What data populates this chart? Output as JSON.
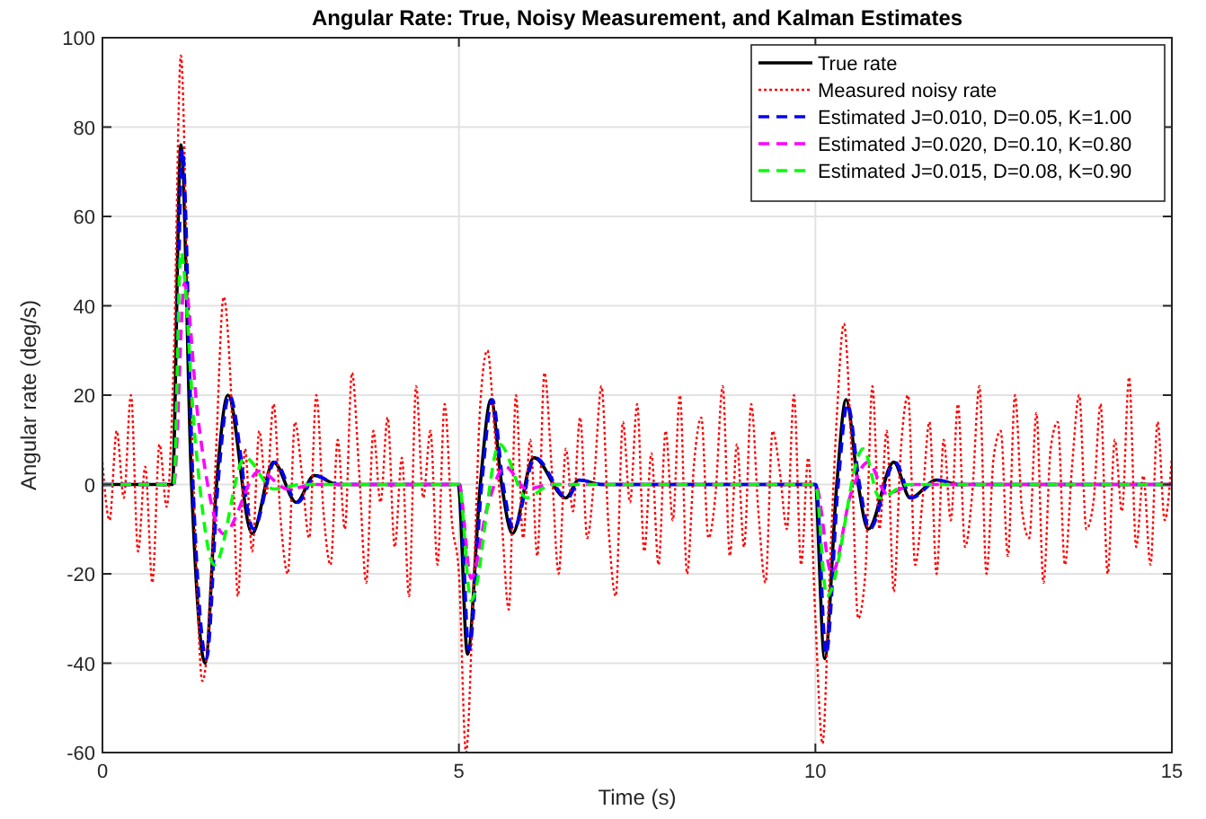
{
  "chart_data": {
    "type": "line",
    "title": "Angular Rate: True, Noisy Measurement, and Kalman Estimates",
    "xlabel": "Time (s)",
    "ylabel": "Angular rate (deg/s)",
    "xlim": [
      0,
      15
    ],
    "xticks": [
      0,
      5,
      10,
      15
    ],
    "ylim": [
      -60,
      100
    ],
    "yticks": [
      -60,
      -40,
      -20,
      0,
      20,
      40,
      60,
      80,
      100
    ],
    "grid": true,
    "legend": "top right",
    "series": [
      {
        "name": "True rate",
        "color": "#000000",
        "line_style": "solid",
        "x": [
          0,
          0.98,
          1.1,
          1.25,
          1.44,
          1.6,
          1.76,
          2.1,
          2.4,
          2.72,
          2.97,
          3.3,
          4.99,
          5.12,
          5.3,
          5.45,
          5.6,
          5.75,
          6.05,
          6.5,
          6.68,
          7.0,
          9.99,
          10.13,
          10.3,
          10.43,
          10.6,
          10.74,
          11.1,
          11.33,
          11.7,
          12.0,
          15
        ],
        "values": [
          0,
          0,
          76,
          0,
          -40,
          0,
          20,
          -11,
          5,
          -4,
          2,
          0,
          0,
          -38,
          0,
          19,
          0,
          -11,
          6,
          -3,
          1,
          0,
          0,
          -39,
          0,
          19,
          0,
          -10,
          5,
          -3,
          1,
          0,
          0
        ]
      },
      {
        "name": "Measured noisy rate",
        "color": "#ff0000",
        "line_style": "dotted",
        "x": [
          0,
          0.1,
          0.2,
          0.3,
          0.4,
          0.5,
          0.6,
          0.7,
          0.8,
          0.9,
          1,
          1.1,
          1.2,
          1.3,
          1.4,
          1.5,
          1.6,
          1.7,
          1.8,
          1.9,
          2,
          2.1,
          2.2,
          2.3,
          2.4,
          2.5,
          2.6,
          2.7,
          2.8,
          2.9,
          3,
          3.1,
          3.2,
          3.3,
          3.4,
          3.5,
          3.6,
          3.7,
          3.8,
          3.9,
          4,
          4.1,
          4.2,
          4.3,
          4.4,
          4.5,
          4.6,
          4.7,
          4.8,
          4.9,
          5,
          5.1,
          5.2,
          5.3,
          5.4,
          5.5,
          5.6,
          5.7,
          5.8,
          5.9,
          6,
          6.1,
          6.2,
          6.3,
          6.4,
          6.5,
          6.6,
          6.7,
          6.8,
          6.9,
          7,
          7.1,
          7.2,
          7.3,
          7.4,
          7.5,
          7.6,
          7.7,
          7.8,
          7.9,
          8,
          8.1,
          8.2,
          8.3,
          8.4,
          8.5,
          8.6,
          8.7,
          8.8,
          8.9,
          9,
          9.1,
          9.2,
          9.3,
          9.4,
          9.5,
          9.6,
          9.7,
          9.8,
          9.9,
          10,
          10.1,
          10.2,
          10.3,
          10.4,
          10.5,
          10.6,
          10.7,
          10.8,
          10.9,
          11,
          11.1,
          11.2,
          11.3,
          11.4,
          11.5,
          11.6,
          11.7,
          11.8,
          11.9,
          12,
          12.1,
          12.2,
          12.3,
          12.4,
          12.5,
          12.6,
          12.7,
          12.8,
          12.9,
          13,
          13.1,
          13.2,
          13.3,
          13.4,
          13.5,
          13.6,
          13.7,
          13.8,
          13.9,
          14,
          14.1,
          14.2,
          14.3,
          14.4,
          14.5,
          14.6,
          14.7,
          14.8,
          14.9,
          15
        ],
        "values": [
          5,
          -8,
          12,
          -3,
          20,
          -15,
          4,
          -22,
          9,
          -5,
          28,
          96,
          40,
          -10,
          -44,
          -30,
          10,
          42,
          22,
          -25,
          8,
          -15,
          12,
          -2,
          18,
          -8,
          -20,
          14,
          2,
          -12,
          20,
          -6,
          -18,
          10,
          -10,
          25,
          3,
          -22,
          12,
          -4,
          15,
          -14,
          6,
          -25,
          22,
          -3,
          12,
          -18,
          18,
          -8,
          -20,
          -60,
          -25,
          18,
          30,
          12,
          -8,
          -28,
          20,
          -12,
          10,
          -16,
          25,
          4,
          -20,
          8,
          -6,
          15,
          -12,
          2,
          22,
          -10,
          -25,
          14,
          -4,
          18,
          -15,
          7,
          -18,
          12,
          -8,
          20,
          -20,
          5,
          15,
          -12,
          -2,
          22,
          -16,
          9,
          -14,
          18,
          -6,
          -22,
          12,
          3,
          -10,
          20,
          -18,
          6,
          -30,
          -58,
          -20,
          15,
          36,
          10,
          -30,
          -20,
          22,
          -10,
          12,
          -24,
          8,
          20,
          -18,
          -4,
          14,
          -20,
          10,
          -8,
          18,
          -14,
          -2,
          22,
          -20,
          6,
          12,
          -16,
          20,
          -6,
          -12,
          16,
          -22,
          8,
          14,
          -18,
          4,
          20,
          -10,
          -4,
          18,
          -20,
          10,
          -6,
          24,
          -14,
          2,
          -18,
          14,
          -8,
          6
        ]
      },
      {
        "name": "Estimated J=0.010, D=0.05, K=1.00",
        "color": "#0000ff",
        "line_style": "dashed",
        "x": [
          0,
          1.0,
          1.12,
          1.27,
          1.46,
          1.62,
          1.78,
          2.12,
          2.42,
          2.74,
          2.99,
          3.3,
          5.01,
          5.14,
          5.32,
          5.47,
          5.62,
          5.77,
          6.07,
          6.52,
          6.7,
          7.0,
          10.01,
          10.15,
          10.32,
          10.45,
          10.62,
          10.76,
          11.12,
          11.35,
          11.72,
          12.0,
          15
        ],
        "values": [
          0,
          0,
          75,
          0,
          -39,
          0,
          20,
          -10,
          5,
          -4,
          2,
          0,
          0,
          -37,
          0,
          19,
          0,
          -10,
          6,
          -3,
          1,
          0,
          0,
          -38,
          0,
          18,
          0,
          -10,
          5,
          -3,
          1,
          0,
          0
        ]
      },
      {
        "name": "Estimated J=0.020, D=0.10, K=0.80",
        "color": "#ff00ff",
        "line_style": "dashed",
        "x": [
          0,
          1.0,
          1.15,
          1.34,
          1.7,
          2.2,
          2.6,
          3.0,
          5.0,
          5.17,
          5.4,
          5.65,
          5.95,
          6.3,
          10.0,
          10.23,
          10.5,
          10.74,
          11.0,
          11.4,
          15
        ],
        "values": [
          0,
          0,
          45,
          15,
          -11,
          3,
          -1,
          0,
          0,
          -21,
          -5,
          4,
          -1,
          0,
          0,
          -20,
          -2,
          5,
          -2,
          0,
          0
        ]
      },
      {
        "name": "Estimated J=0.015, D=0.08, K=0.90",
        "color": "#00ff00",
        "line_style": "dashed",
        "x": [
          0,
          1.0,
          1.1,
          1.3,
          1.57,
          2.0,
          2.4,
          2.8,
          5.0,
          5.17,
          5.57,
          5.95,
          6.3,
          10.0,
          10.16,
          10.67,
          10.9,
          11.3,
          15
        ],
        "values": [
          0,
          0,
          52,
          10,
          -18,
          6,
          -1,
          0,
          0,
          -26,
          9,
          -3,
          0,
          0,
          -25,
          8,
          -3,
          0,
          0
        ]
      }
    ]
  }
}
